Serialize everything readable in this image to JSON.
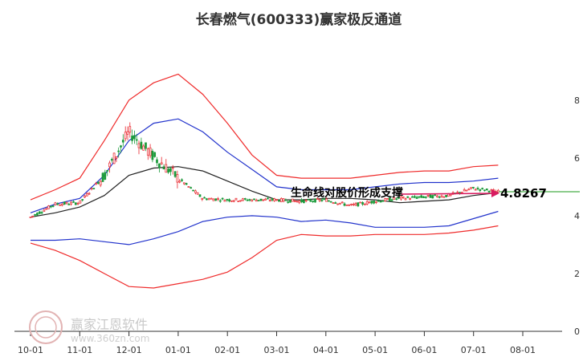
{
  "chart_data": {
    "type": "line",
    "title": "长春燃气(600333)赢家极反通道",
    "x_tick_labels": [
      "10-01",
      "11-01",
      "12-01",
      "01-01",
      "02-01",
      "03-01",
      "04-01",
      "05-01",
      "06-01",
      "07-01",
      "08-01"
    ],
    "y_tick_labels": [
      "0",
      "2",
      "4",
      "6",
      "8"
    ],
    "ylim": [
      0,
      8.8
    ],
    "grid": false,
    "annotation_text": "生命线对股价形成支撑",
    "last_price_label": "4.8267",
    "colors": {
      "price_up": "#e8242b",
      "price_down": "#1a9a3a",
      "upper_band": "#ef2b2b",
      "inner_band": "#2233cc",
      "life_line": "#222222",
      "arrow": "#d81b60",
      "support": "#1a9a1a"
    },
    "x": [
      "10-01",
      "10-15",
      "11-01",
      "11-15",
      "12-01",
      "12-15",
      "01-01",
      "01-15",
      "02-01",
      "02-15",
      "03-01",
      "03-15",
      "04-01",
      "04-15",
      "05-01",
      "05-15",
      "06-01",
      "06-15",
      "07-01",
      "07-15"
    ],
    "series": [
      {
        "values": [
          3.95,
          4.4,
          4.45,
          5.4,
          6.9,
          6.05,
          5.3,
          4.6,
          4.55,
          4.55,
          4.55,
          4.5,
          4.55,
          4.35,
          4.5,
          4.6,
          4.65,
          4.7,
          4.95,
          4.83
        ]
      },
      {
        "values": [
          4.55,
          4.9,
          5.3,
          6.6,
          8.0,
          8.6,
          8.9,
          8.2,
          7.2,
          6.1,
          5.4,
          5.3,
          5.3,
          5.3,
          5.4,
          5.5,
          5.55,
          5.55,
          5.7,
          5.75
        ]
      },
      {
        "values": [
          4.1,
          4.4,
          4.6,
          5.4,
          6.6,
          7.2,
          7.35,
          6.9,
          6.2,
          5.6,
          5.0,
          4.9,
          4.9,
          4.9,
          5.0,
          5.1,
          5.15,
          5.15,
          5.2,
          5.3
        ]
      },
      {
        "values": [
          3.95,
          4.1,
          4.3,
          4.7,
          5.4,
          5.65,
          5.7,
          5.55,
          5.2,
          4.85,
          4.55,
          4.55,
          4.6,
          4.6,
          4.55,
          4.45,
          4.5,
          4.55,
          4.7,
          4.8
        ]
      },
      {
        "values": [
          3.15,
          3.15,
          3.2,
          3.1,
          3.0,
          3.2,
          3.45,
          3.8,
          3.95,
          4.0,
          3.95,
          3.8,
          3.85,
          3.75,
          3.6,
          3.6,
          3.6,
          3.65,
          3.9,
          4.15
        ]
      },
      {
        "values": [
          3.05,
          2.8,
          2.45,
          2.0,
          1.55,
          1.5,
          1.65,
          1.8,
          2.05,
          2.55,
          3.15,
          3.35,
          3.3,
          3.3,
          3.35,
          3.35,
          3.35,
          3.4,
          3.5,
          3.65
        ]
      }
    ]
  },
  "watermark": {
    "brand": "赢家江恩软件",
    "url": "www.360zn.com"
  }
}
